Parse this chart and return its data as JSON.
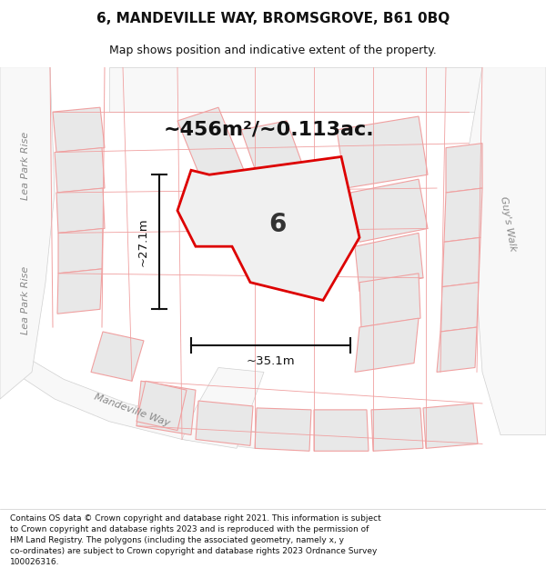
{
  "title": "6, MANDEVILLE WAY, BROMSGROVE, B61 0BQ",
  "subtitle": "Map shows position and indicative extent of the property.",
  "area_text": "~456m²/~0.113ac.",
  "plot_number": "6",
  "dim_width": "~35.1m",
  "dim_height": "~27.1m",
  "footer": "Contains OS data © Crown copyright and database right 2021. This information is subject to Crown copyright and database rights 2023 and is reproduced with the permission of HM Land Registry. The polygons (including the associated geometry, namely x, y co-ordinates) are subject to Crown copyright and database rights 2023 Ordnance Survey 100026316.",
  "bg_color": "#ffffff",
  "map_bg": "#f5f5f5",
  "plot_fill": "#f0f0f0",
  "plot_edge": "#dd0000",
  "neighbor_fill": "#e8e8e8",
  "neighbor_edge": "#f0a0a0",
  "road_label_color": "#888888",
  "dim_line_color": "#111111",
  "road_label": "Mandeville Way",
  "road_label2": "Lea Park Rise",
  "road_label3": "Guy's Walk",
  "title_fontsize": 11,
  "subtitle_fontsize": 9,
  "footer_fontsize": 6.5,
  "area_fontsize": 16,
  "number_fontsize": 20,
  "label_fontsize": 8
}
